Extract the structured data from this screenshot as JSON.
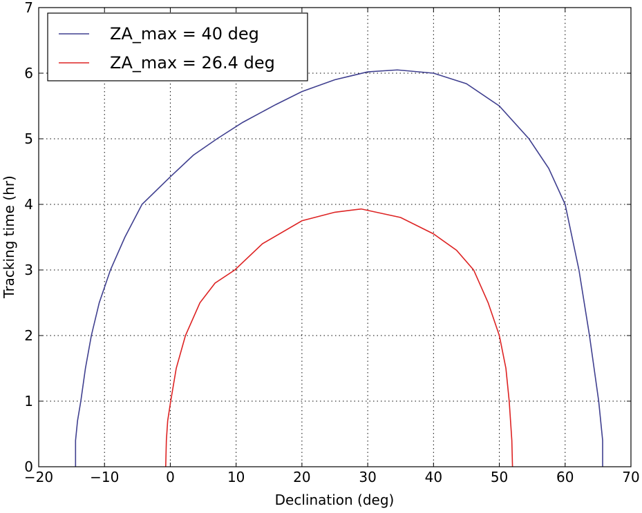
{
  "chart_data": {
    "type": "line",
    "xlabel": "Declination (deg)",
    "ylabel": "Tracking time (hr)",
    "xlim": [
      -20,
      70
    ],
    "ylim": [
      0,
      7
    ],
    "xticks": [
      {
        "value": -20,
        "label": "−20"
      },
      {
        "value": -10,
        "label": "−10"
      },
      0,
      10,
      20,
      30,
      40,
      50,
      60,
      70
    ],
    "yticks": [
      0,
      1,
      2,
      3,
      4,
      5,
      6,
      7
    ],
    "grid": true,
    "legend": "upper left",
    "series": [
      {
        "name": "ZA_max = 40 deg",
        "color": "#3f3f8f",
        "x": [
          -14.4,
          -14.4,
          -14.1,
          -13.6,
          -12.9,
          -12.0,
          -10.8,
          -9.1,
          -6.9,
          -4.3,
          0,
          3.5,
          7.1,
          11,
          16,
          20,
          25,
          30,
          34.5,
          40,
          45,
          50,
          54.5,
          57.5,
          60.0,
          62.1,
          63.7,
          65.1,
          65.6,
          65.7,
          65.7
        ],
        "values": [
          0,
          0.4,
          0.7,
          1.0,
          1.5,
          2.0,
          2.5,
          3.0,
          3.5,
          4.0,
          4.42,
          4.75,
          5.0,
          5.25,
          5.52,
          5.72,
          5.9,
          6.02,
          6.05,
          6.0,
          5.84,
          5.5,
          5.0,
          4.55,
          4.0,
          3.0,
          2.0,
          1.0,
          0.5,
          0.4,
          0
        ]
      },
      {
        "name": "ZA_max = 26.4 deg",
        "color": "#dd2222",
        "x": [
          -0.7,
          -0.6,
          -0.4,
          0.06,
          0.9,
          2.3,
          4.5,
          6.8,
          9.8,
          14,
          20,
          25,
          29,
          35,
          40,
          43.5,
          46.1,
          48.3,
          50.0,
          51.0,
          51.5,
          51.9,
          52.0
        ],
        "values": [
          0,
          0.4,
          0.7,
          1.0,
          1.5,
          2.0,
          2.5,
          2.8,
          3.0,
          3.4,
          3.75,
          3.88,
          3.93,
          3.8,
          3.55,
          3.3,
          3.0,
          2.5,
          2.0,
          1.5,
          1.0,
          0.4,
          0
        ]
      }
    ]
  }
}
